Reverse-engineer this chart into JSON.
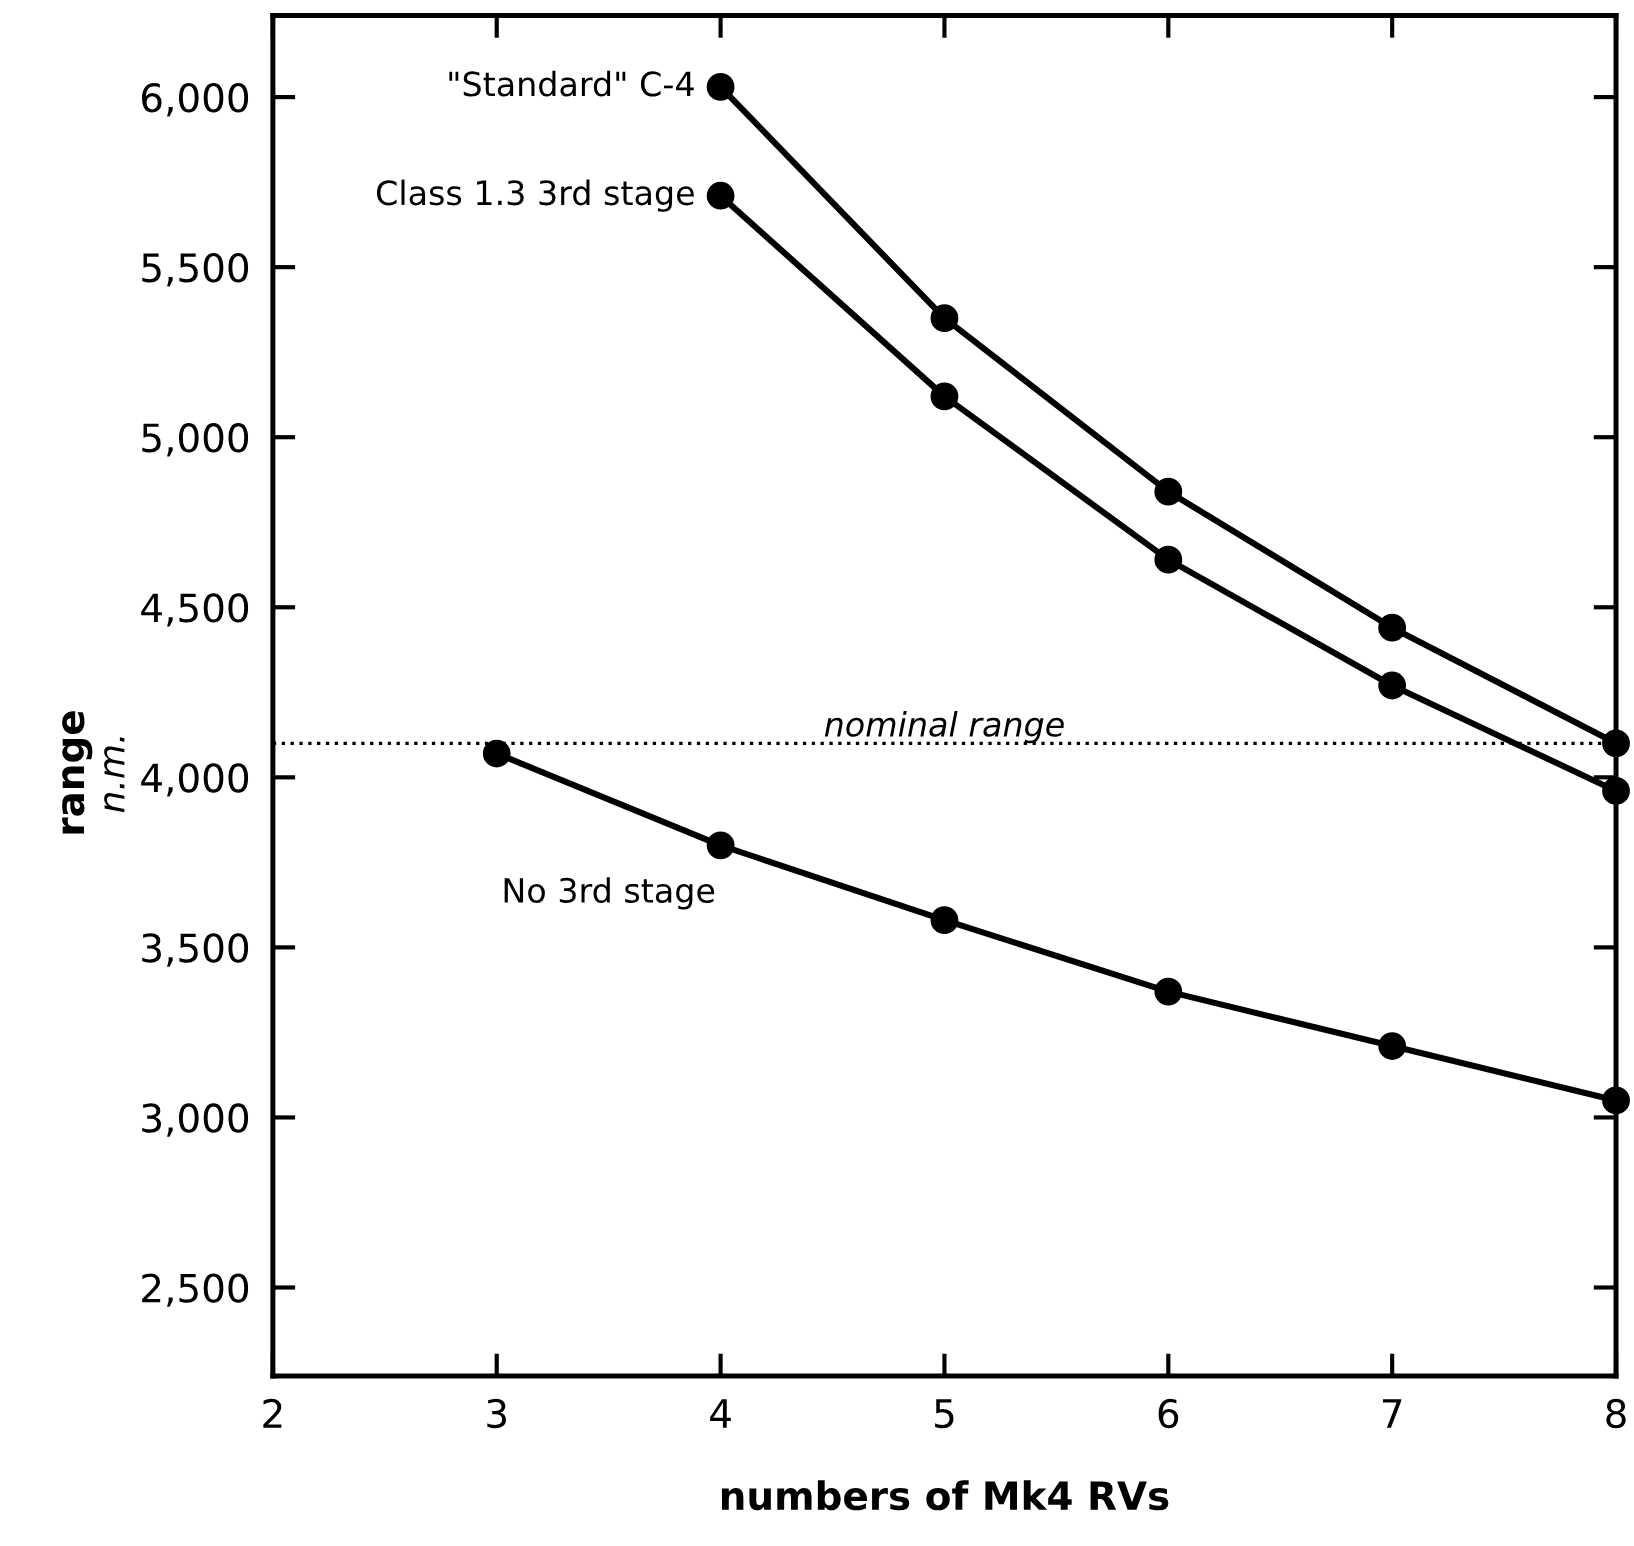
{
  "chart_data": {
    "type": "line",
    "xlabel": "numbers of Mk4 RVs",
    "ylabel": "range\nn.m.",
    "xlim": [
      2,
      8
    ],
    "xticks": [
      2,
      3,
      4,
      5,
      6,
      7,
      8
    ],
    "ylim": [
      2240,
      6240
    ],
    "yticks": [
      {
        "value": 2500,
        "label": "2,500"
      },
      {
        "value": 3000,
        "label": "3,000"
      },
      {
        "value": 3500,
        "label": "3,500"
      },
      {
        "value": 4000,
        "label": "4,000"
      },
      {
        "value": 4500,
        "label": "4,500"
      },
      {
        "value": 5000,
        "label": "5,000"
      },
      {
        "value": 5500,
        "label": "5,500"
      },
      {
        "value": 6000,
        "label": "6,000"
      }
    ],
    "marker": "circle",
    "line_style": "solid",
    "grid": false,
    "series": [
      {
        "name": "\"Standard\" C-4",
        "color": "#000000",
        "x": [
          4,
          5,
          6,
          7,
          8
        ],
        "values": [
          6030,
          5350,
          4840,
          4440,
          4100
        ]
      },
      {
        "name": "Class 1.3 3rd stage",
        "color": "#000000",
        "x": [
          4,
          5,
          6,
          7,
          8
        ],
        "values": [
          5710,
          5120,
          4640,
          4270,
          3960
        ]
      },
      {
        "name": "No 3rd stage",
        "color": "#000000",
        "x": [
          3,
          4,
          5,
          6,
          7,
          8
        ],
        "values": [
          4070,
          3800,
          3580,
          3370,
          3210,
          3050
        ]
      }
    ],
    "ref_lines": [
      {
        "axis": "y",
        "value": 4100,
        "label": "nominal range",
        "color": "#000000",
        "line_style": "dotted"
      }
    ]
  }
}
